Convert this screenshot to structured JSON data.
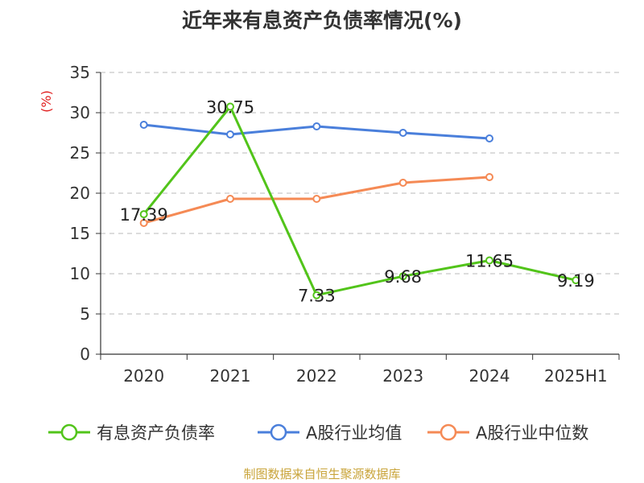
{
  "title": "近年来有息资产负债率情况(%)",
  "footer": "制图数据来自恒生聚源数据库",
  "colors": {
    "debt_ratio": "#52c41a",
    "industry_avg": "#4a7fdb",
    "industry_median": "#f58a55",
    "unit_label": "#e01e1e",
    "footer": "#c9a43a",
    "grid": "#c8c8c8",
    "axis": "#333333"
  },
  "chart_data": {
    "type": "line",
    "title": "近年来有息资产负债率情况(%)",
    "unit_label": "(%)",
    "categories": [
      "2020",
      "2021",
      "2022",
      "2023",
      "2024",
      "2025H1"
    ],
    "ylim": [
      0,
      35
    ],
    "yticks": [
      0,
      5,
      10,
      15,
      20,
      25,
      30,
      35
    ],
    "grid": true,
    "legend_position": "bottom",
    "series": [
      {
        "name": "有息资产负债率",
        "color_key": "debt_ratio",
        "values": [
          17.39,
          30.75,
          7.33,
          9.68,
          11.65,
          9.19
        ],
        "labels": [
          "17.39",
          "30.75",
          "7.33",
          "9.68",
          "11.65",
          "9.19"
        ]
      },
      {
        "name": "A股行业均值",
        "color_key": "industry_avg",
        "values": [
          28.5,
          27.3,
          28.3,
          27.5,
          26.8,
          null
        ]
      },
      {
        "name": "A股行业中位数",
        "color_key": "industry_median",
        "values": [
          16.3,
          19.3,
          19.3,
          21.3,
          22.0,
          null
        ]
      }
    ]
  }
}
